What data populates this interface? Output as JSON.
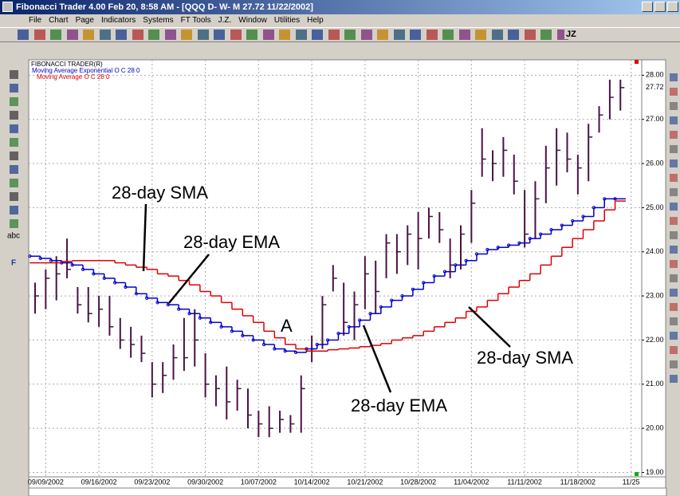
{
  "window_title": "Fibonacci Trader 4.00 Feb 20, 8:58 AM - [QQQ D- W- M 27.72 11/22/2002]",
  "menu": [
    "File",
    "Chart",
    "Page",
    "Indicators",
    "Systems",
    "FT Tools",
    "J.Z.",
    "Window",
    "Utilities",
    "Help"
  ],
  "toolbar_labels": [
    "JZ"
  ],
  "left_tools": [
    "abc",
    "F"
  ],
  "chart_data": {
    "type": "ohlc",
    "title": "FIBONACCI TRADER(R)",
    "categories": [
      null,
      "09/09/2002",
      null,
      null,
      null,
      null,
      "09/16/2002",
      null,
      null,
      null,
      null,
      "09/23/2002",
      null,
      null,
      null,
      null,
      "09/30/2002",
      null,
      null,
      null,
      null,
      "10/07/2002",
      null,
      null,
      null,
      null,
      "10/14/2002",
      null,
      null,
      null,
      null,
      "10/21/2002",
      null,
      null,
      null,
      null,
      "10/28/2002",
      null,
      null,
      null,
      null,
      "11/04/2002",
      null,
      null,
      null,
      null,
      "11/11/2002",
      null,
      null,
      null,
      null,
      "11/18/2002",
      null,
      null,
      null,
      null,
      "11/25"
    ],
    "bar_color": "#4a1245",
    "high": [
      23.3,
      23.6,
      23.9,
      24.3,
      23.2,
      23.2,
      23.0,
      23.0,
      22.5,
      22.3,
      22.1,
      21.5,
      21.5,
      21.9,
      22.5,
      22.7,
      21.7,
      21.2,
      21.4,
      21.1,
      20.9,
      20.4,
      20.5,
      20.4,
      20.3,
      21.2,
      22.1,
      23.0,
      23.7,
      23.3,
      23.1,
      23.9,
      23.8,
      24.4,
      24.4,
      24.6,
      24.9,
      25.0,
      24.9,
      24.3,
      24.6,
      25.4,
      26.8,
      26.3,
      26.6,
      26.2,
      25.4,
      25.6,
      26.4,
      26.8,
      26.7,
      26.2,
      26.9,
      27.3,
      27.9,
      27.9,
      null
    ],
    "low": [
      22.6,
      22.7,
      22.9,
      23.4,
      22.6,
      22.4,
      22.3,
      22.1,
      21.8,
      21.6,
      21.5,
      20.7,
      20.8,
      21.1,
      21.3,
      21.4,
      20.7,
      20.5,
      20.2,
      20.4,
      20.0,
      19.8,
      19.8,
      19.9,
      19.9,
      19.9,
      21.5,
      21.8,
      23.1,
      22.1,
      22.0,
      22.7,
      22.6,
      23.4,
      23.5,
      23.7,
      23.6,
      24.3,
      24.2,
      23.4,
      23.6,
      24.2,
      25.7,
      25.6,
      25.7,
      25.3,
      24.1,
      24.3,
      25.1,
      25.5,
      25.8,
      25.3,
      25.6,
      26.7,
      27.0,
      27.2,
      null
    ],
    "close": [
      23.0,
      23.4,
      23.5,
      23.6,
      22.8,
      22.6,
      22.7,
      22.3,
      22.0,
      21.9,
      21.7,
      21.0,
      21.2,
      21.6,
      21.6,
      22.0,
      21.0,
      20.9,
      20.6,
      20.9,
      20.3,
      20.1,
      20.0,
      20.2,
      20.1,
      20.9,
      21.8,
      22.8,
      23.4,
      22.4,
      22.8,
      23.5,
      23.1,
      24.2,
      24.0,
      24.4,
      24.3,
      24.8,
      24.5,
      23.7,
      24.4,
      25.1,
      26.1,
      26.0,
      26.3,
      25.6,
      24.4,
      25.2,
      25.9,
      26.3,
      26.1,
      25.9,
      26.6,
      27.1,
      27.5,
      27.72,
      null
    ],
    "series": [
      {
        "name": "Moving Average Exponential O C 28 0",
        "color": "#0000cc",
        "values": [
          23.9,
          23.85,
          23.8,
          23.75,
          23.7,
          23.6,
          23.5,
          23.4,
          23.3,
          23.2,
          23.05,
          22.95,
          22.85,
          22.8,
          22.7,
          22.6,
          22.5,
          22.4,
          22.3,
          22.2,
          22.1,
          22.0,
          21.9,
          21.8,
          21.75,
          21.72,
          21.8,
          21.9,
          22.0,
          22.15,
          22.3,
          22.45,
          22.6,
          22.75,
          22.9,
          23.0,
          23.15,
          23.3,
          23.45,
          23.55,
          23.7,
          23.8,
          23.95,
          24.05,
          24.1,
          24.15,
          24.2,
          24.3,
          24.4,
          24.5,
          24.6,
          24.7,
          24.8,
          25.0,
          25.2,
          25.2,
          null
        ]
      },
      {
        "name": "Moving Average O C 28 0",
        "color": "#dd0000",
        "values": [
          23.75,
          23.75,
          23.75,
          23.78,
          23.8,
          23.8,
          23.8,
          23.8,
          23.75,
          23.7,
          23.65,
          23.6,
          23.5,
          23.45,
          23.35,
          23.25,
          23.1,
          23.0,
          22.85,
          22.7,
          22.55,
          22.4,
          22.2,
          22.05,
          21.9,
          21.8,
          21.75,
          21.75,
          21.78,
          21.8,
          21.82,
          21.85,
          21.88,
          21.92,
          22.0,
          22.05,
          22.1,
          22.2,
          22.3,
          22.4,
          22.5,
          22.65,
          22.75,
          22.9,
          23.05,
          23.2,
          23.35,
          23.5,
          23.7,
          23.9,
          24.1,
          24.3,
          24.5,
          24.7,
          24.95,
          25.15,
          null
        ]
      }
    ],
    "last_price": 27.72,
    "ylim": [
      18.9,
      28.35
    ],
    "yticks": [
      {
        "value": 19,
        "label": "19.00"
      },
      {
        "value": 20,
        "label": "20.00"
      },
      {
        "value": 21,
        "label": "21.00"
      },
      {
        "value": 22,
        "label": "22.00"
      },
      {
        "value": 23,
        "label": "23.00"
      },
      {
        "value": 24,
        "label": "24.00"
      },
      {
        "value": 25,
        "label": "25.00"
      },
      {
        "value": 26,
        "label": "26.00"
      },
      {
        "value": 27,
        "label": "27.00"
      },
      {
        "value": 28,
        "label": "28.00"
      }
    ],
    "grid": true,
    "annotations": [
      "28-day SMA",
      "28-day EMA",
      "A",
      "28-day SMA",
      "28-day EMA"
    ]
  }
}
